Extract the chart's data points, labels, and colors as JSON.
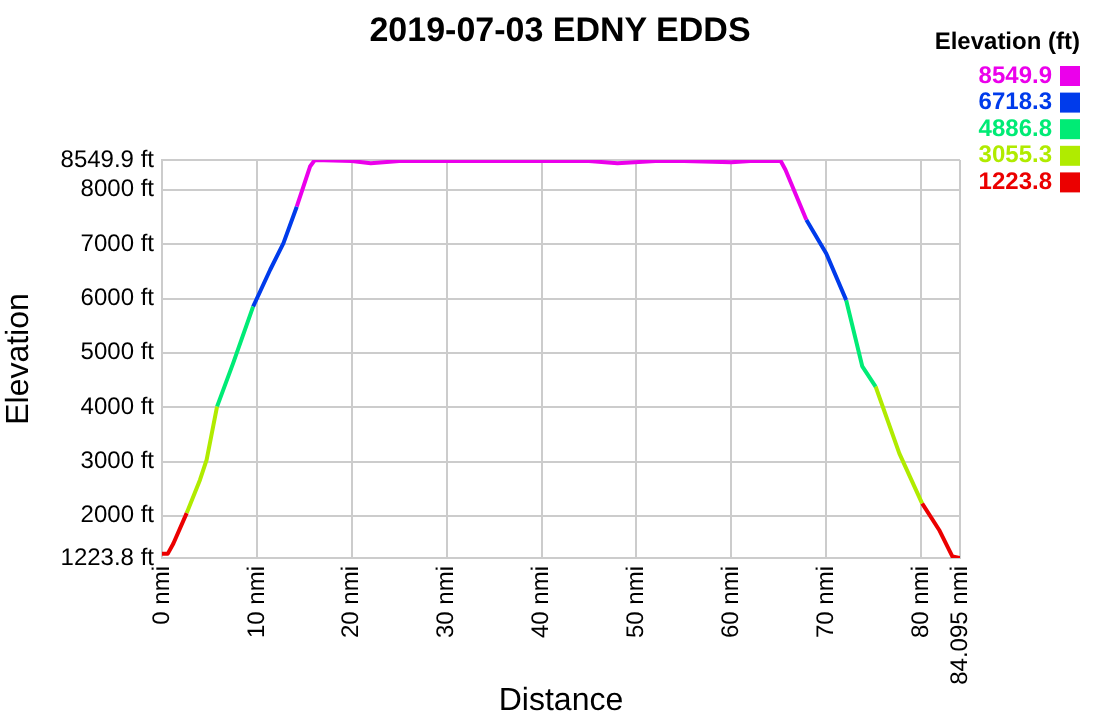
{
  "chart_data": {
    "type": "line",
    "title": "2019-07-03 EDNY EDDS",
    "xlabel": "Distance",
    "ylabel": "Elevation",
    "clabel": "Elevation (ft)",
    "clim": [
      1223.8,
      8549.9
    ],
    "cticks": [
      8549.9,
      6718.3,
      4886.8,
      3055.3,
      1223.8
    ],
    "series": [
      {
        "color": "#eb0000",
        "x": [
          0,
          0.6,
          1.2,
          2.6
        ],
        "values": [
          1300,
          1300,
          1490,
          2050
        ]
      },
      {
        "color": "#b0eb00",
        "x": [
          2.6,
          4.0,
          4.7,
          5.8
        ],
        "values": [
          2050,
          2660,
          3030,
          4010
        ]
      },
      {
        "color": "#00eb76",
        "x": [
          5.8,
          7.5,
          9.6
        ],
        "values": [
          4010,
          4810,
          5850
        ]
      },
      {
        "color": "#003beb",
        "x": [
          9.6,
          11.4,
          12.8,
          14.2
        ],
        "values": [
          5850,
          6530,
          7020,
          7690
        ]
      },
      {
        "color": "#eb00eb",
        "x": [
          14.2,
          15.6,
          16.1,
          20,
          22,
          25,
          30,
          35,
          40,
          45,
          48,
          52,
          55,
          60,
          62,
          65.2,
          65.7,
          67.9
        ],
        "values": [
          7690,
          8430,
          8549.9,
          8530,
          8490,
          8530,
          8530,
          8530,
          8530,
          8530,
          8490,
          8530,
          8530,
          8510,
          8530,
          8530,
          8370,
          7450
        ]
      },
      {
        "color": "#003beb",
        "x": [
          67.9,
          70.0,
          72.1
        ],
        "values": [
          7450,
          6830,
          5970
        ]
      },
      {
        "color": "#00eb76",
        "x": [
          72.1,
          73.8,
          75.2
        ],
        "values": [
          5970,
          4750,
          4380
        ]
      },
      {
        "color": "#b0eb00",
        "x": [
          75.2,
          77.7,
          80.1
        ],
        "values": [
          4380,
          3150,
          2230
        ]
      },
      {
        "color": "#eb0000",
        "x": [
          80.1,
          81.9,
          83.3,
          84.095
        ],
        "values": [
          2230,
          1740,
          1250,
          1223.8
        ]
      }
    ],
    "xlim": [
      0,
      84.095
    ],
    "xticks": [
      {
        "value": 0,
        "label": "0 nmi"
      },
      {
        "value": 10,
        "label": "10 nmi"
      },
      {
        "value": 20,
        "label": "20 nmi"
      },
      {
        "value": 30,
        "label": "30 nmi"
      },
      {
        "value": 40,
        "label": "40 nmi"
      },
      {
        "value": 50,
        "label": "50 nmi"
      },
      {
        "value": 60,
        "label": "60 nmi"
      },
      {
        "value": 70,
        "label": "70 nmi"
      },
      {
        "value": 80,
        "label": "80 nmi"
      },
      {
        "value": 84.095,
        "label": "84.095 nmi"
      }
    ],
    "ylim": [
      1223.8,
      8549.9
    ],
    "yticks": [
      {
        "value": 1223.8,
        "label": "1223.8 ft"
      },
      {
        "value": 2000,
        "label": "2000 ft"
      },
      {
        "value": 3000,
        "label": "3000 ft"
      },
      {
        "value": 4000,
        "label": "4000 ft"
      },
      {
        "value": 5000,
        "label": "5000 ft"
      },
      {
        "value": 6000,
        "label": "6000 ft"
      },
      {
        "value": 7000,
        "label": "7000 ft"
      },
      {
        "value": 8000,
        "label": "8000 ft"
      },
      {
        "value": 8549.9,
        "label": "8549.9 ft"
      }
    ],
    "grid": true,
    "marker": "none",
    "line_style": "solid"
  }
}
